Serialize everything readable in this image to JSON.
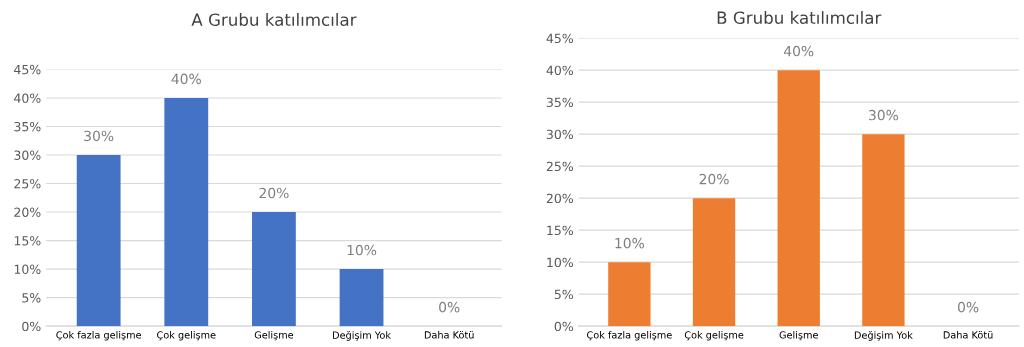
{
  "chart_data": [
    {
      "type": "bar",
      "title": "A Grubu katılımcılar",
      "categories": [
        "Çok fazla gelişme",
        "Çok gelişme",
        "Gelişme",
        "Değişim Yok",
        "Daha Kötü"
      ],
      "values": [
        30,
        40,
        20,
        10,
        0
      ],
      "value_labels": [
        "30%",
        "40%",
        "20%",
        "10%",
        "0%"
      ],
      "color": "#4472c4",
      "ylim": [
        0,
        45
      ],
      "yticks": [
        {
          "value": 0,
          "label": "0%"
        },
        {
          "value": 5,
          "label": "5%"
        },
        {
          "value": 10,
          "label": "10%"
        },
        {
          "value": 15,
          "label": "15%"
        },
        {
          "value": 20,
          "label": "20%"
        },
        {
          "value": 25,
          "label": "25%"
        },
        {
          "value": 30,
          "label": "30%"
        },
        {
          "value": 35,
          "label": "35%"
        },
        {
          "value": 40,
          "label": "40%"
        },
        {
          "value": 45,
          "label": "45%"
        }
      ],
      "grid": "y"
    },
    {
      "type": "bar",
      "title": "B Grubu katılımcılar",
      "categories": [
        "Çok fazla gelişme",
        "Çok gelişme",
        "Gelişme",
        "Değişim Yok",
        "Daha Kötü"
      ],
      "values": [
        10,
        20,
        40,
        30,
        0
      ],
      "value_labels": [
        "10%",
        "20%",
        "40%",
        "30%",
        "0%"
      ],
      "color": "#ed7d31",
      "ylim": [
        0,
        45
      ],
      "yticks": [
        {
          "value": 0,
          "label": "0%"
        },
        {
          "value": 5,
          "label": "5%"
        },
        {
          "value": 10,
          "label": "10%"
        },
        {
          "value": 15,
          "label": "15%"
        },
        {
          "value": 20,
          "label": "20%"
        },
        {
          "value": 25,
          "label": "25%"
        },
        {
          "value": 30,
          "label": "30%"
        },
        {
          "value": 35,
          "label": "35%"
        },
        {
          "value": 40,
          "label": "40%"
        },
        {
          "value": 45,
          "label": "45%"
        }
      ],
      "grid": "y"
    }
  ]
}
